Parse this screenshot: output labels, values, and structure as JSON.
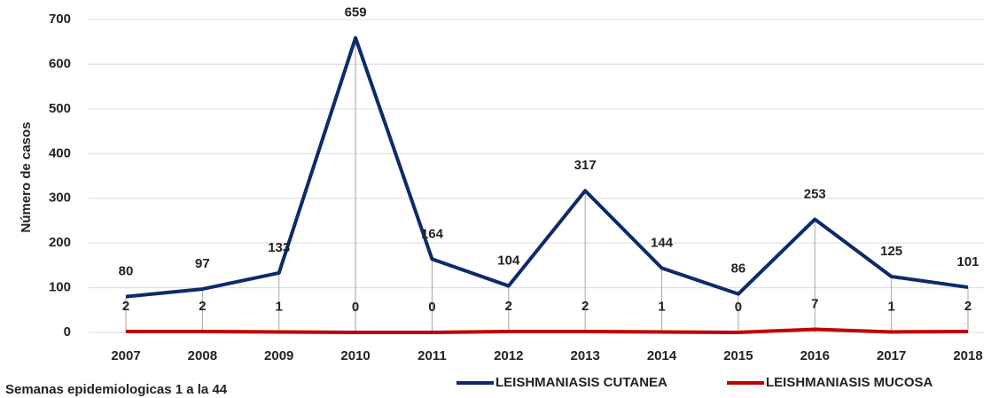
{
  "chart_data": {
    "type": "line",
    "y_label": "Número de casos",
    "x_label": "Semanas epidemiologicas 1 a la 44",
    "categories": [
      "2007",
      "2008",
      "2009",
      "2010",
      "2011",
      "2012",
      "2013",
      "2014",
      "2015",
      "2016",
      "2017",
      "2018"
    ],
    "series": [
      {
        "name": "LEISHMANIASIS CUTANEA",
        "color": "#0e2a6b",
        "values": [
          80,
          97,
          133,
          659,
          164,
          104,
          317,
          144,
          86,
          253,
          125,
          101
        ]
      },
      {
        "name": "LEISHMANIASIS MUCOSA",
        "color": "#c00000",
        "values": [
          2,
          2,
          1,
          0,
          0,
          2,
          2,
          1,
          0,
          7,
          1,
          2
        ]
      }
    ],
    "ylim": [
      0,
      700
    ],
    "yticks": [
      0,
      100,
      200,
      300,
      400,
      500,
      600,
      700
    ],
    "grid": true,
    "legend": "bottom"
  }
}
